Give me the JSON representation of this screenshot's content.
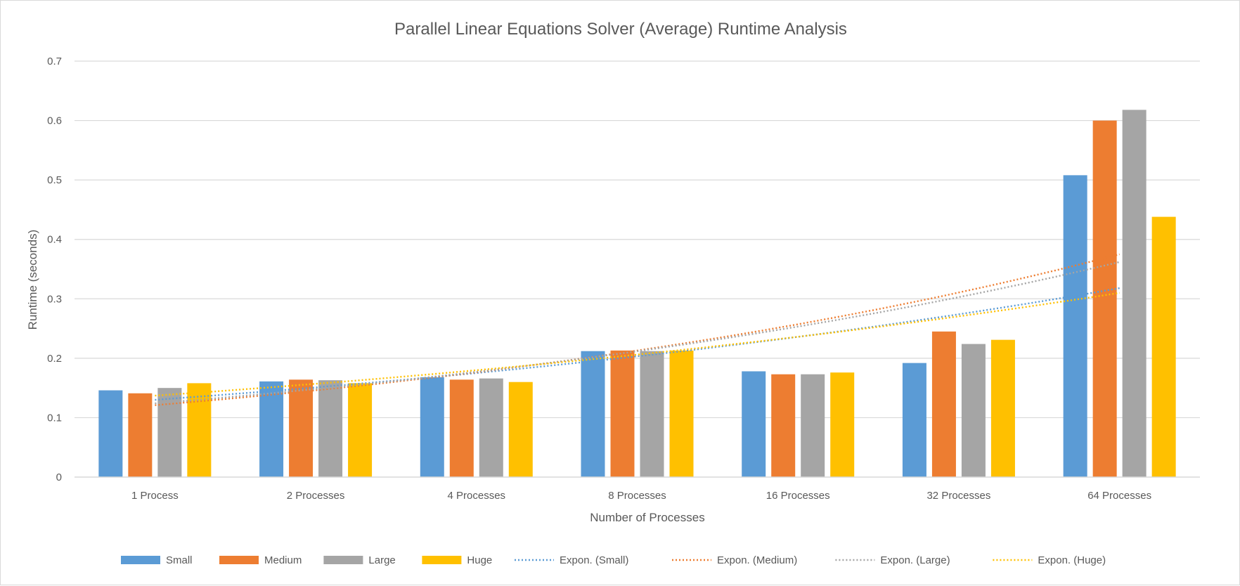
{
  "chart_data": {
    "type": "bar",
    "title": "Parallel Linear Equations Solver (Average) Runtime Analysis",
    "xlabel": "Number of Processes",
    "ylabel": "Runtime (seconds)",
    "ylim": [
      0,
      0.7
    ],
    "yticks": [
      "0",
      "0.1",
      "0.2",
      "0.3",
      "0.4",
      "0.5",
      "0.6",
      "0.7"
    ],
    "grid": true,
    "legend_position": "bottom",
    "categories": [
      "1 Process",
      "2 Processes",
      "4 Processes",
      "8 Processes",
      "16 Processes",
      "32 Processes",
      "64 Processes"
    ],
    "series": [
      {
        "name": "Small",
        "color": "#5b9bd5",
        "values": [
          0.146,
          0.161,
          0.168,
          0.212,
          0.178,
          0.192,
          0.508
        ]
      },
      {
        "name": "Medium",
        "color": "#ed7d31",
        "values": [
          0.141,
          0.164,
          0.164,
          0.213,
          0.173,
          0.245,
          0.6
        ]
      },
      {
        "name": "Large",
        "color": "#a5a5a5",
        "values": [
          0.15,
          0.163,
          0.166,
          0.212,
          0.173,
          0.224,
          0.618
        ]
      },
      {
        "name": "Huge",
        "color": "#ffc000",
        "values": [
          0.158,
          0.158,
          0.16,
          0.213,
          0.176,
          0.231,
          0.438
        ]
      }
    ],
    "trendlines": [
      {
        "name": "Expon.  (Small)",
        "color": "#5b9bd5",
        "type": "exponential",
        "from": 0.13,
        "to": 0.318
      },
      {
        "name": "Expon.  (Medium)",
        "color": "#ed7d31",
        "type": "exponential",
        "from": 0.121,
        "to": 0.375
      },
      {
        "name": "Expon.  (Large)",
        "color": "#a5a5a5",
        "type": "exponential",
        "from": 0.124,
        "to": 0.362
      },
      {
        "name": "Expon.  (Huge)",
        "color": "#ffc000",
        "type": "exponential",
        "from": 0.137,
        "to": 0.31
      }
    ]
  }
}
